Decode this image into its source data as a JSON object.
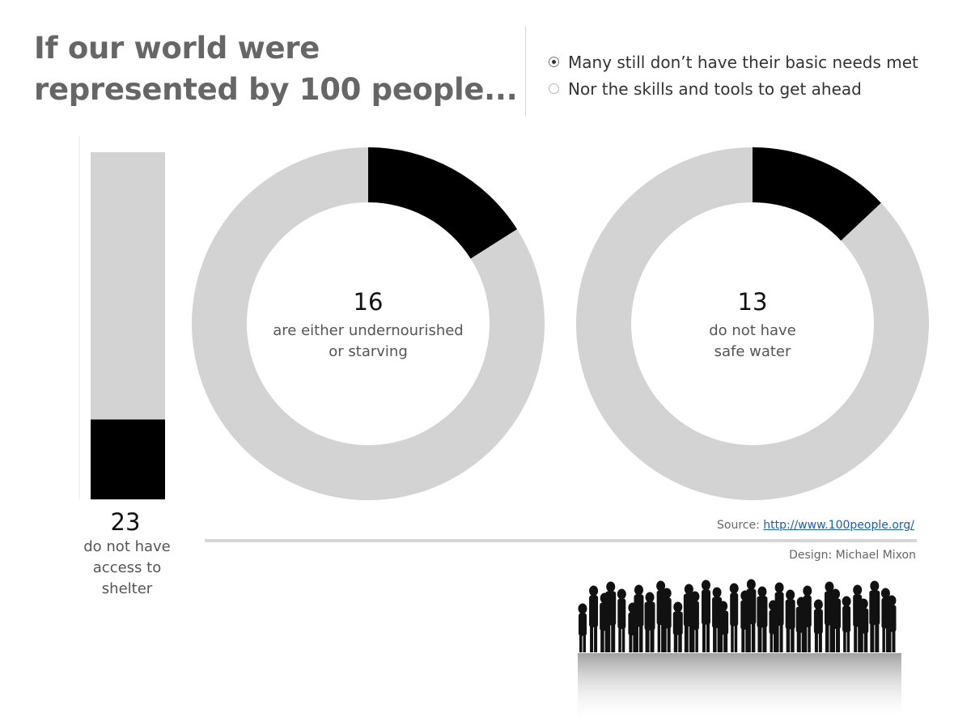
{
  "title": "If our world were represented by 100 people...",
  "radio_options": [
    {
      "label": "Many still don’t have their basic needs met",
      "selected": true
    },
    {
      "label": "Nor the skills and tools to get ahead",
      "selected": false
    }
  ],
  "colors": {
    "highlight": "#000000",
    "rest": "#d3d3d3",
    "axis": "#e8e8e8"
  },
  "chart_data": [
    {
      "type": "bar",
      "total": 100,
      "values": [
        23
      ],
      "value_label": "23",
      "caption": "do not have access to shelter"
    },
    {
      "type": "pie",
      "total": 100,
      "values": [
        16,
        84
      ],
      "value_label": "16",
      "caption": "are either undernourished or starving"
    },
    {
      "type": "pie",
      "total": 100,
      "values": [
        13,
        87
      ],
      "value_label": "13",
      "caption": "do not have safe water"
    }
  ],
  "footer": {
    "source_prefix": "Source: ",
    "source_link": "http://www.100people.org/",
    "design": "Design: Michael Mixon"
  },
  "image": {
    "icon": "crowd-silhouette-image"
  }
}
